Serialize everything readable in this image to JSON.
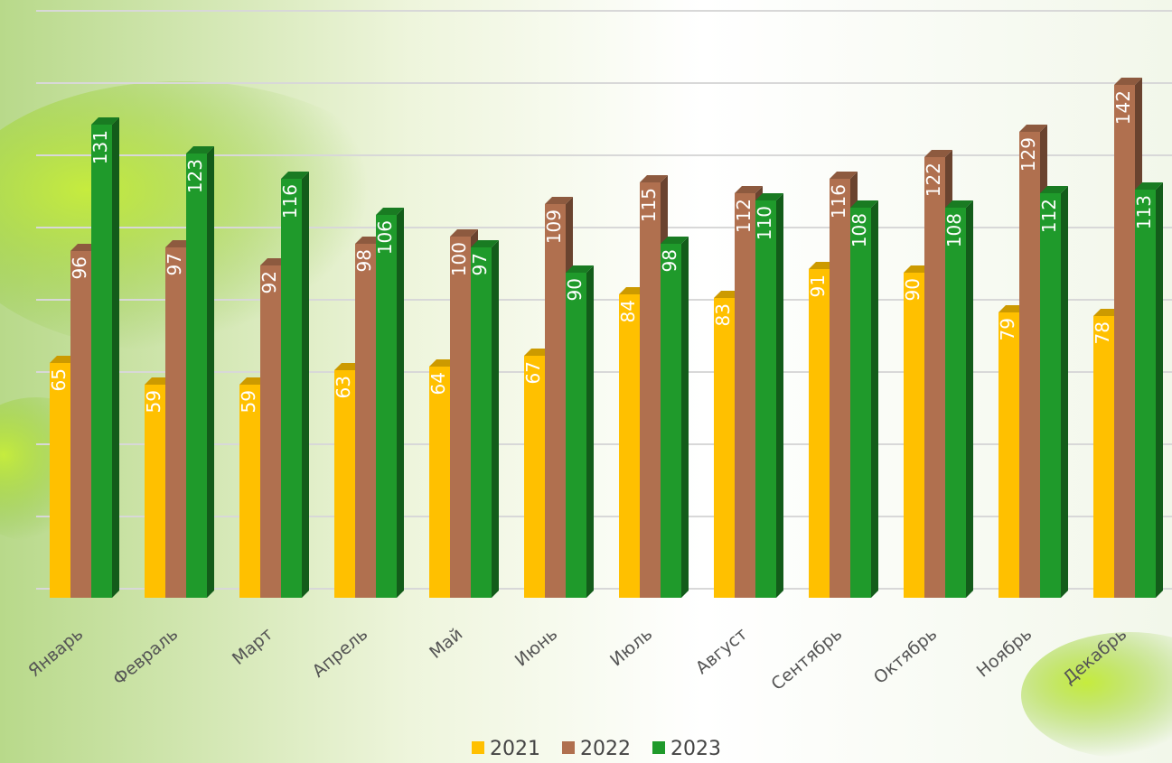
{
  "chart_data": {
    "type": "bar3d",
    "categories": [
      "Январь",
      "Февраль",
      "Март",
      "Апрель",
      "Май",
      "Июнь",
      "Июль",
      "Август",
      "Сентябрь",
      "Октябрь",
      "Ноябрь",
      "Декабрь"
    ],
    "series": [
      {
        "name": "2021",
        "color": "#ffc000",
        "values": [
          65,
          59,
          59,
          63,
          64,
          67,
          84,
          83,
          91,
          90,
          79,
          78
        ]
      },
      {
        "name": "2022",
        "color": "#b0704f",
        "values": [
          96,
          97,
          92,
          98,
          100,
          109,
          115,
          112,
          116,
          122,
          129,
          142
        ]
      },
      {
        "name": "2023",
        "color": "#1f9a2b",
        "values": [
          131,
          123,
          116,
          106,
          97,
          90,
          98,
          110,
          108,
          108,
          112,
          113
        ]
      }
    ],
    "ylim": [
      0,
      160
    ],
    "yticks": [
      0,
      20,
      40,
      60,
      80,
      100,
      120,
      140,
      160
    ],
    "grid": true,
    "legend": "bottom"
  }
}
